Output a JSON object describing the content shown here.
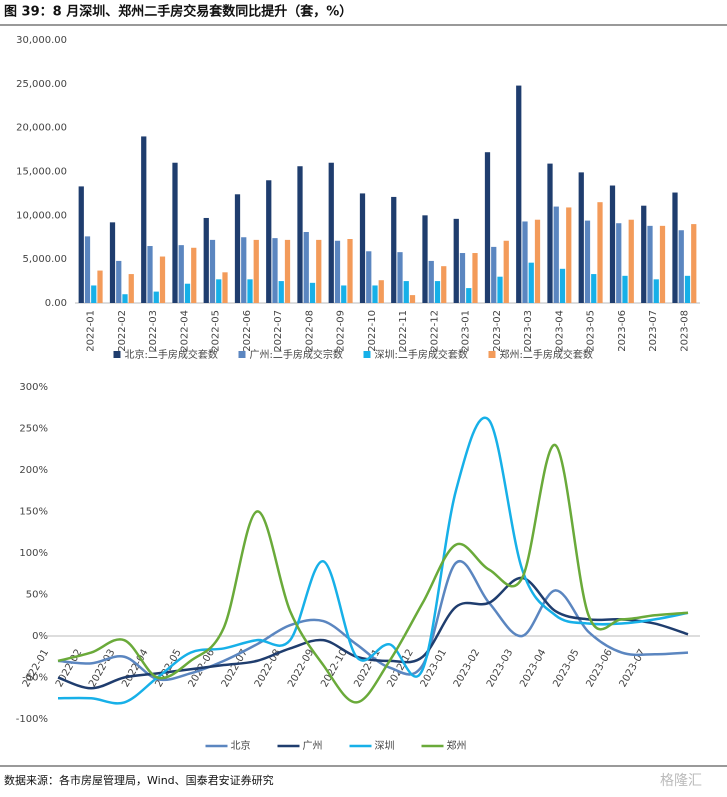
{
  "title": "图 39：8 月深圳、郑州二手房交易套数同比提升（套，%）",
  "source": "数据来源：各市房屋管理局，Wind、国泰君安证券研究",
  "watermark": "格隆汇",
  "chart_data": [
    {
      "type": "bar",
      "categories": [
        "2022-01",
        "2022-02",
        "2022-03",
        "2022-04",
        "2022-05",
        "2022-06",
        "2022-07",
        "2022-08",
        "2022-09",
        "2022-10",
        "2022-11",
        "2022-12",
        "2023-01",
        "2023-02",
        "2023-03",
        "2023-04",
        "2023-05",
        "2023-06",
        "2023-07",
        "2023-08"
      ],
      "series": [
        {
          "name": "北京:二手房成交套数",
          "color": "#1f3d6e",
          "values": [
            13300,
            9200,
            19000,
            16000,
            9700,
            12400,
            14000,
            15600,
            16000,
            12500,
            12100,
            10000,
            9600,
            17200,
            24800,
            15900,
            14900,
            13400,
            11100,
            12600
          ]
        },
        {
          "name": "广州:二手房成交宗数",
          "color": "#5b86c0",
          "values": [
            7600,
            4800,
            6500,
            6600,
            7200,
            7500,
            7400,
            8100,
            7100,
            5900,
            5800,
            4800,
            5700,
            6400,
            9300,
            11000,
            9400,
            9100,
            8800,
            8300
          ]
        },
        {
          "name": "深圳:二手房成交套数",
          "color": "#17b0e8",
          "values": [
            2000,
            1000,
            1300,
            2200,
            2700,
            2700,
            2500,
            2300,
            2000,
            2000,
            2500,
            2500,
            1700,
            3000,
            4600,
            3900,
            3300,
            3100,
            2700,
            3100
          ]
        },
        {
          "name": "郑州:二手房成交套数",
          "color": "#f39b5a",
          "values": [
            3700,
            3300,
            5300,
            6300,
            3500,
            7200,
            7200,
            7200,
            7300,
            2600,
            900,
            4200,
            5700,
            7100,
            9500,
            10900,
            11500,
            9500,
            8800,
            9000
          ]
        }
      ],
      "ylim": [
        0,
        30000
      ],
      "yticks": [
        {
          "value": 0,
          "label": "0.00"
        },
        {
          "value": 5000,
          "label": "5,000.00"
        },
        {
          "value": 10000,
          "label": "10,000.00"
        },
        {
          "value": 15000,
          "label": "15,000.00"
        },
        {
          "value": 20000,
          "label": "20,000.00"
        },
        {
          "value": 25000,
          "label": "25,000.00"
        },
        {
          "value": 30000,
          "label": "30,000.00"
        }
      ],
      "grid": false,
      "legend": "bottom"
    },
    {
      "type": "line",
      "categories": [
        "2022-01",
        "2022-02",
        "2022-03",
        "2022-04",
        "2022-05",
        "2022-06",
        "2022-07",
        "2022-08",
        "2022-09",
        "2022-10",
        "2022-11",
        "2022-12",
        "2023-01",
        "2023-02",
        "2023-03",
        "2023-04",
        "2023-05",
        "2023-06",
        "2023-07",
        null
      ],
      "series": [
        {
          "name": "北京",
          "color": "#5b86c0",
          "values": [
            -30,
            -33,
            -25,
            -52,
            -45,
            -30,
            -10,
            13,
            18,
            -10,
            -38,
            -35,
            88,
            40,
            0,
            55,
            5,
            -20,
            -22,
            -20
          ]
        },
        {
          "name": "广州",
          "color": "#1f3d6e",
          "values": [
            -50,
            -63,
            -50,
            -45,
            -40,
            -35,
            -30,
            -15,
            -5,
            -25,
            -30,
            -25,
            35,
            40,
            70,
            30,
            20,
            20,
            15,
            2
          ]
        },
        {
          "name": "深圳",
          "color": "#17b0e8",
          "values": [
            -75,
            -75,
            -80,
            -50,
            -20,
            -15,
            -5,
            -5,
            90,
            -25,
            -10,
            -40,
            175,
            260,
            80,
            25,
            15,
            15,
            20,
            28
          ]
        },
        {
          "name": "郑州",
          "color": "#6aaa3a",
          "values": [
            -30,
            -20,
            -5,
            -50,
            -30,
            10,
            150,
            30,
            -35,
            -80,
            -30,
            40,
            110,
            80,
            70,
            230,
            25,
            20,
            25,
            28
          ]
        }
      ],
      "ylim": [
        -100,
        300
      ],
      "yticks": [
        {
          "value": -100,
          "label": "-100%"
        },
        {
          "value": -50,
          "label": "-50%"
        },
        {
          "value": 0,
          "label": "0%"
        },
        {
          "value": 50,
          "label": "50%"
        },
        {
          "value": 100,
          "label": "100%"
        },
        {
          "value": 150,
          "label": "150%"
        },
        {
          "value": 200,
          "label": "200%"
        },
        {
          "value": 250,
          "label": "250%"
        },
        {
          "value": 300,
          "label": "300%"
        }
      ],
      "grid": false,
      "smooth": true,
      "legend": "bottom"
    }
  ]
}
